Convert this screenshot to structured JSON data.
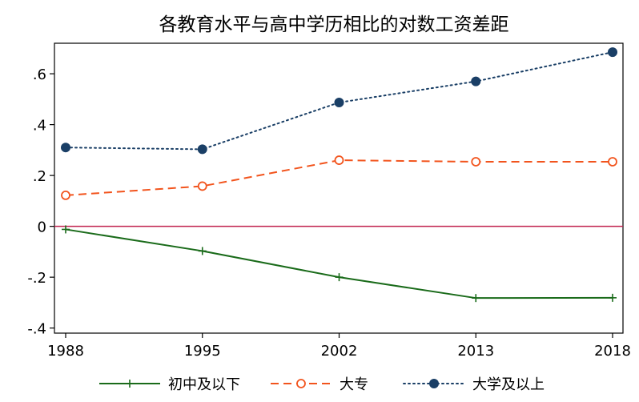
{
  "chart_data": {
    "type": "line",
    "title": "各教育水平与高中学历相比的对数工资差距",
    "xlabel": "",
    "ylabel": "",
    "categories": [
      "1988",
      "1995",
      "2002",
      "2013",
      "2018"
    ],
    "ylim": [
      -0.42,
      0.72
    ],
    "yticks": [
      0.6,
      0.4,
      0.2,
      0,
      -0.2,
      -0.4
    ],
    "ytick_labels": [
      ".6",
      ".4",
      ".2",
      "0",
      "-.2",
      "-.4"
    ],
    "reference_line": {
      "y": 0,
      "color": "#c0224e"
    },
    "grid": false,
    "legend_position": "bottom",
    "series": [
      {
        "name": "初中及以下",
        "values": [
          -0.012,
          -0.097,
          -0.2,
          -0.282,
          -0.281
        ],
        "color": "#1a6b1a",
        "line_style": "solid",
        "marker": "plus"
      },
      {
        "name": "大专",
        "values": [
          0.122,
          0.158,
          0.26,
          0.254,
          0.254
        ],
        "color": "#f2541d",
        "line_style": "dashed",
        "marker": "hollow-circle"
      },
      {
        "name": "大学及以上",
        "values": [
          0.31,
          0.303,
          0.487,
          0.57,
          0.685
        ],
        "color": "#1a3f66",
        "line_style": "dotted",
        "marker": "filled-circle"
      }
    ]
  }
}
